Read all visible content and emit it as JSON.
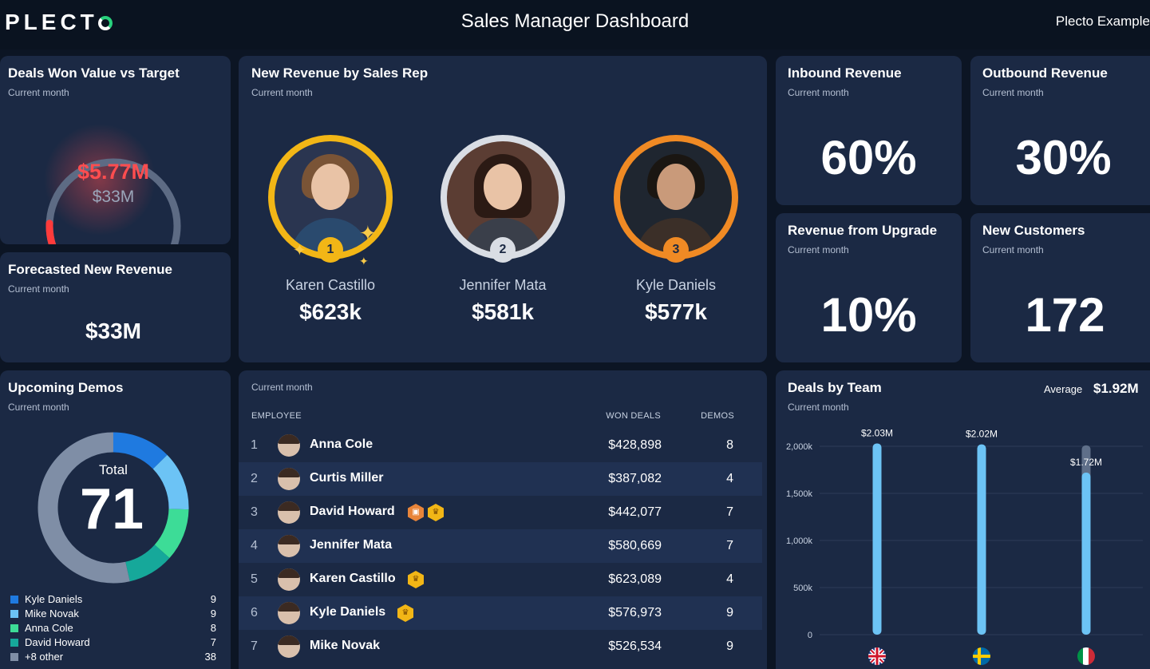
{
  "header": {
    "logo": "PLECT",
    "title": "Sales Manager Dashboard",
    "account": "Plecto Example"
  },
  "deals_won": {
    "title": "Deals Won Value vs Target",
    "subtitle": "Current month",
    "value": "$5.77M",
    "target": "$33M",
    "progress_fraction": 0.175,
    "color": "#ff4d4f"
  },
  "forecast": {
    "title": "Forecasted New Revenue",
    "subtitle": "Current month",
    "value": "$33M"
  },
  "revenue_by_rep": {
    "title": "New Revenue by Sales Rep",
    "subtitle": "Current month",
    "leaders": [
      {
        "rank": "1",
        "name": "Karen Castillo",
        "value": "$623k",
        "color": "#f2b616"
      },
      {
        "rank": "2",
        "name": "Jennifer Mata",
        "value": "$581k",
        "color": "#d9dde4"
      },
      {
        "rank": "3",
        "name": "Kyle Daniels",
        "value": "$577k",
        "color": "#f08a24"
      }
    ]
  },
  "kpis": {
    "inbound": {
      "title": "Inbound Revenue",
      "subtitle": "Current month",
      "value": "60%"
    },
    "outbound": {
      "title": "Outbound Revenue",
      "subtitle": "Current month",
      "value": "30%"
    },
    "upgrade": {
      "title": "Revenue from Upgrade",
      "subtitle": "Current month",
      "value": "10%"
    },
    "new_customers": {
      "title": "New Customers",
      "subtitle": "Current month",
      "value": "172"
    }
  },
  "demos": {
    "title": "Upcoming Demos",
    "subtitle": "Current month",
    "total_label": "Total",
    "total": "71",
    "legend": [
      {
        "name": "Kyle Daniels",
        "value": 9,
        "color": "#1f7ae0"
      },
      {
        "name": "Mike Novak",
        "value": 9,
        "color": "#6cc3f5"
      },
      {
        "name": "Anna Cole",
        "value": 8,
        "color": "#3ddc97"
      },
      {
        "name": "David Howard",
        "value": 7,
        "color": "#16a89a"
      },
      {
        "name": "+8 other",
        "value": 38,
        "color": "#7f8ea6"
      }
    ]
  },
  "leaderboard": {
    "subtitle": "Current month",
    "headers": {
      "employee": "EMPLOYEE",
      "won": "WON DEALS",
      "demos": "DEMOS"
    },
    "rows": [
      {
        "idx": "1",
        "name": "Anna Cole",
        "won": "$428,898",
        "demos": "8",
        "badges": []
      },
      {
        "idx": "2",
        "name": "Curtis Miller",
        "won": "$387,082",
        "demos": "4",
        "badges": []
      },
      {
        "idx": "3",
        "name": "David Howard",
        "won": "$442,077",
        "demos": "7",
        "badges": [
          "orange-medal-icon",
          "gold-trophy-icon"
        ]
      },
      {
        "idx": "4",
        "name": "Jennifer Mata",
        "won": "$580,669",
        "demos": "7",
        "badges": []
      },
      {
        "idx": "5",
        "name": "Karen Castillo",
        "won": "$623,089",
        "demos": "4",
        "badges": [
          "gold-trophy-icon"
        ]
      },
      {
        "idx": "6",
        "name": "Kyle Daniels",
        "won": "$576,973",
        "demos": "9",
        "badges": [
          "gold-trophy-icon"
        ]
      },
      {
        "idx": "7",
        "name": "Mike Novak",
        "won": "$526,534",
        "demos": "9",
        "badges": []
      }
    ]
  },
  "deals_by_team": {
    "title": "Deals by Team",
    "subtitle": "Current month",
    "average_label": "Average",
    "average_value": "$1.92M"
  },
  "chart_data": {
    "type": "bar",
    "categories": [
      "uk-flag-icon",
      "sweden-flag-icon",
      "italy-flag-icon"
    ],
    "values": [
      2030,
      2020,
      1720
    ],
    "target_values": [
      2030,
      2020,
      2010
    ],
    "data_labels": [
      "$2.03M",
      "$2.02M",
      "$1.72M"
    ],
    "yticks": [
      0,
      500,
      1000,
      1500,
      2000
    ],
    "ytick_labels": [
      "0",
      "500k",
      "1,000k",
      "1,500k",
      "2,000k"
    ],
    "ylim": [
      0,
      2000
    ],
    "grid": true,
    "bar_color": "#6cc3f5",
    "target_color": "#5f6f89"
  }
}
